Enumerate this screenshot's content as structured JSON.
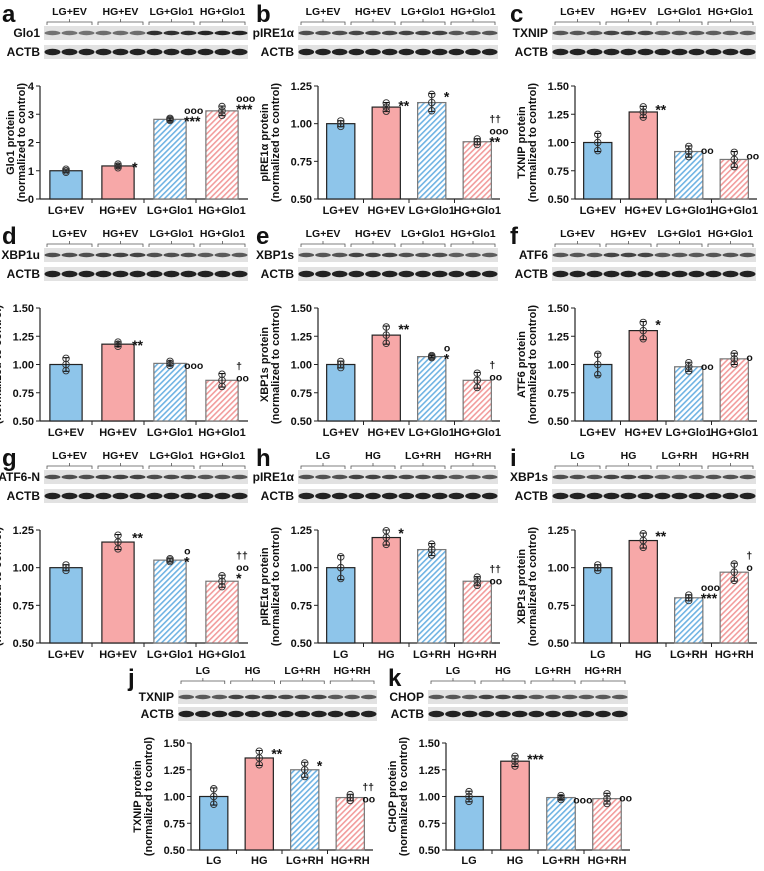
{
  "colors": {
    "lg": "#8EC5EA",
    "hg": "#F7A8A8",
    "lg_hatch": "#6FB3E3",
    "hg_hatch": "#F29C9C",
    "edge": "#222222"
  },
  "y_subtitle": "(normalized to control)",
  "loading_control": "ACTB",
  "chart_data": [
    {
      "panel": "a",
      "type": "bar",
      "protein": "Glo1",
      "ylabel": "Glo1 protein",
      "categories": [
        "LG+EV",
        "HG+EV",
        "LG+Glo1",
        "HG+Glo1"
      ],
      "values": [
        1.0,
        1.17,
        2.82,
        3.12
      ],
      "errors": [
        0.06,
        0.07,
        0.04,
        0.17
      ],
      "ylim": [
        0,
        4
      ],
      "yticks": [
        "0",
        "1",
        "2",
        "3",
        "4"
      ],
      "annotations": [
        [],
        [
          "*"
        ],
        [
          "ooo",
          "***"
        ],
        [
          "ooo",
          "***"
        ]
      ]
    },
    {
      "panel": "b",
      "type": "bar",
      "protein": "pIRE1α",
      "ylabel": "pIRE1α protein",
      "categories": [
        "LG+EV",
        "HG+EV",
        "LG+Glo1",
        "HG+Glo1"
      ],
      "values": [
        1.0,
        1.11,
        1.14,
        0.88
      ],
      "errors": [
        0.02,
        0.03,
        0.06,
        0.02
      ],
      "ylim": [
        0.5,
        1.25
      ],
      "yticks": [
        "0.50",
        "0.75",
        "1.00",
        "1.25"
      ],
      "annotations": [
        [],
        [
          "**"
        ],
        [
          "*"
        ],
        [
          "††",
          "ooo",
          "**"
        ]
      ]
    },
    {
      "panel": "c",
      "type": "bar",
      "protein": "TXNIP",
      "ylabel": "TXNIP protein",
      "categories": [
        "LG+EV",
        "HG+EV",
        "LG+Glo1",
        "HG+Glo1"
      ],
      "values": [
        1.0,
        1.27,
        0.92,
        0.85
      ],
      "errors": [
        0.08,
        0.05,
        0.05,
        0.07
      ],
      "ylim": [
        0.5,
        1.5
      ],
      "yticks": [
        "0.50",
        "0.75",
        "1.00",
        "1.25",
        "1.50"
      ],
      "annotations": [
        [],
        [
          "**"
        ],
        [
          "oo"
        ],
        [
          "oo"
        ]
      ]
    },
    {
      "panel": "d",
      "type": "bar",
      "protein": "XBP1u",
      "ylabel": "XBP1u protein",
      "categories": [
        "LG+EV",
        "HG+EV",
        "LG+Glo1",
        "HG+Glo1"
      ],
      "values": [
        1.0,
        1.18,
        1.01,
        0.86
      ],
      "errors": [
        0.06,
        0.02,
        0.02,
        0.06
      ],
      "ylim": [
        0.5,
        1.5
      ],
      "yticks": [
        "0.50",
        "0.75",
        "1.00",
        "1.25",
        "1.50"
      ],
      "annotations": [
        [],
        [
          "**"
        ],
        [
          "ooo"
        ],
        [
          "†",
          "oo"
        ]
      ]
    },
    {
      "panel": "e",
      "type": "bar",
      "protein": "XBP1s",
      "ylabel": "XBP1s protein",
      "categories": [
        "LG+EV",
        "HG+EV",
        "LG+Glo1",
        "HG+Glo1"
      ],
      "values": [
        1.0,
        1.26,
        1.07,
        0.86
      ],
      "errors": [
        0.03,
        0.08,
        0.01,
        0.07
      ],
      "ylim": [
        0.5,
        1.5
      ],
      "yticks": [
        "0.50",
        "0.75",
        "1.00",
        "1.25",
        "1.50"
      ],
      "annotations": [
        [],
        [
          "**"
        ],
        [
          "o",
          "*"
        ],
        [
          "†",
          "oo"
        ]
      ]
    },
    {
      "panel": "f",
      "type": "bar",
      "protein": "ATF6",
      "ylabel": "ATF6 protein",
      "categories": [
        "LG+EV",
        "HG+EV",
        "LG+Glo1",
        "HG+Glo1"
      ],
      "values": [
        1.0,
        1.3,
        0.98,
        1.05
      ],
      "errors": [
        0.1,
        0.08,
        0.04,
        0.05
      ],
      "ylim": [
        0.5,
        1.5
      ],
      "yticks": [
        "0.50",
        "0.75",
        "1.00",
        "1.25",
        "1.50"
      ],
      "annotations": [
        [],
        [
          "*"
        ],
        [
          "oo"
        ],
        [
          "o"
        ]
      ]
    },
    {
      "panel": "g",
      "type": "bar",
      "protein": "ATF6-N",
      "ylabel": "ATF6-N protein",
      "categories": [
        "LG+EV",
        "HG+EV",
        "LG+Glo1",
        "HG+Glo1"
      ],
      "values": [
        1.0,
        1.17,
        1.05,
        0.91
      ],
      "errors": [
        0.02,
        0.05,
        0.01,
        0.04
      ],
      "ylim": [
        0.5,
        1.25
      ],
      "yticks": [
        "0.50",
        "0.75",
        "1.00",
        "1.25"
      ],
      "annotations": [
        [],
        [
          "**"
        ],
        [
          "o",
          "*"
        ],
        [
          "††",
          "oo",
          "*"
        ]
      ]
    },
    {
      "panel": "h",
      "type": "bar",
      "protein": "pIRE1α",
      "ylabel": "pIRE1α protein",
      "categories": [
        "LG",
        "HG",
        "LG+RH",
        "HG+RH"
      ],
      "values": [
        1.0,
        1.2,
        1.12,
        0.91
      ],
      "errors": [
        0.08,
        0.05,
        0.04,
        0.03
      ],
      "ylim": [
        0.5,
        1.25
      ],
      "yticks": [
        "0.50",
        "0.75",
        "1.00",
        "1.25"
      ],
      "annotations": [
        [],
        [
          "*"
        ],
        [],
        [
          "††",
          "oo"
        ]
      ]
    },
    {
      "panel": "i",
      "type": "bar",
      "protein": "XBP1s",
      "ylabel": "XBP1s protein",
      "categories": [
        "LG",
        "HG",
        "LG+RH",
        "HG+RH"
      ],
      "values": [
        1.0,
        1.18,
        0.8,
        0.97
      ],
      "errors": [
        0.02,
        0.05,
        0.02,
        0.06
      ],
      "ylim": [
        0.5,
        1.25
      ],
      "yticks": [
        "0.50",
        "0.75",
        "1.00",
        "1.25"
      ],
      "annotations": [
        [],
        [
          "**"
        ],
        [
          "ooo",
          "***"
        ],
        [
          "†",
          "o"
        ]
      ]
    },
    {
      "panel": "j",
      "type": "bar",
      "protein": "TXNIP",
      "ylabel": "TXNIP protein",
      "categories": [
        "LG",
        "HG",
        "LG+RH",
        "HG+RH"
      ],
      "values": [
        1.0,
        1.36,
        1.25,
        0.99
      ],
      "errors": [
        0.08,
        0.07,
        0.07,
        0.03
      ],
      "ylim": [
        0.5,
        1.5
      ],
      "yticks": [
        "0.50",
        "0.75",
        "1.00",
        "1.25",
        "1.50"
      ],
      "annotations": [
        [],
        [
          "**"
        ],
        [
          "*"
        ],
        [
          "††",
          "oo"
        ]
      ]
    },
    {
      "panel": "k",
      "type": "bar",
      "protein": "CHOP",
      "ylabel": "CHOP protein",
      "categories": [
        "LG",
        "HG",
        "LG+RH",
        "HG+RH"
      ],
      "values": [
        1.0,
        1.33,
        0.99,
        0.98
      ],
      "errors": [
        0.05,
        0.05,
        0.02,
        0.05
      ],
      "ylim": [
        0.5,
        1.5
      ],
      "yticks": [
        "0.50",
        "0.75",
        "1.00",
        "1.25",
        "1.50"
      ],
      "annotations": [
        [],
        [
          "***"
        ],
        [
          "ooo"
        ],
        [
          "oo"
        ]
      ]
    }
  ]
}
